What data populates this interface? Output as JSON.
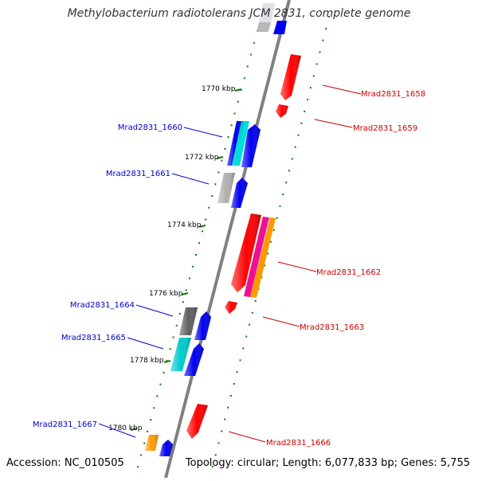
{
  "title": "Methylobacterium radiotolerans JCM 2831, complete genome",
  "accession_text": "Accession: NC_010505",
  "summary_text": "Topology: circular; Length: 6,077,833 bp; Genes: 5,755",
  "colors": {
    "backbone": "#808080",
    "tick": "#008000",
    "forward_label": "#cc0000",
    "reverse_label": "#0000cc",
    "red": "#ff0000",
    "blue": "#0000ee",
    "cyan": "#00cccc",
    "gray": "#b0b0b0",
    "darkgray": "#606060",
    "magenta": "#ee1090",
    "orange": "#ff9900"
  },
  "scale_labels": [
    "1770 kbp",
    "1772 kbp",
    "1774 kbp",
    "1776 kbp",
    "1778 kbp",
    "1780 kbp"
  ],
  "gene_labels": {
    "forward": [
      "Mrad2831_1658",
      "Mrad2831_1659",
      "Mrad2831_1662",
      "Mrad2831_1663",
      "Mrad2831_1666"
    ],
    "reverse": [
      "Mrad2831_1660",
      "Mrad2831_1661",
      "Mrad2831_1664",
      "Mrad2831_1665",
      "Mrad2831_1667"
    ]
  }
}
